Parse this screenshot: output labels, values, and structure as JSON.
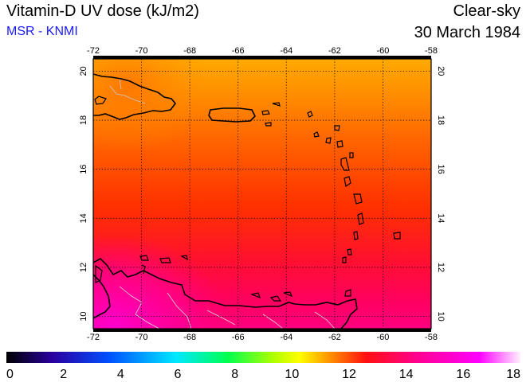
{
  "header": {
    "title": "Vitamin-D UV dose (kJ/m2)",
    "provider": "MSR - KNMI",
    "sky_condition": "Clear-sky",
    "date": "30 March 1984"
  },
  "map": {
    "lon_ticks": [
      "-72",
      "-70",
      "-68",
      "-66",
      "-64",
      "-62",
      "-60",
      "-58"
    ],
    "lat_ticks": [
      "10",
      "12",
      "14",
      "16",
      "18",
      "20"
    ],
    "lon_range": [
      -72,
      -58
    ],
    "lat_range": [
      9.5,
      20.5
    ],
    "field_description_colors": {
      "north": "#ffa000",
      "middle": "#ff3a00",
      "south": "#ff0a50",
      "southwest_land": "#ff00c0"
    }
  },
  "colorbar": {
    "tick_labels": [
      "0",
      "2",
      "4",
      "6",
      "8",
      "10",
      "12",
      "14",
      "16",
      "18"
    ],
    "range": [
      0,
      18
    ],
    "stops": [
      "#000000",
      "#2a00a0",
      "#0060ff",
      "#00e0ff",
      "#00ff60",
      "#a0ff00",
      "#ffff00",
      "#ff9000",
      "#ff1010",
      "#ff0090",
      "#ff00ff",
      "#ffffff"
    ]
  }
}
